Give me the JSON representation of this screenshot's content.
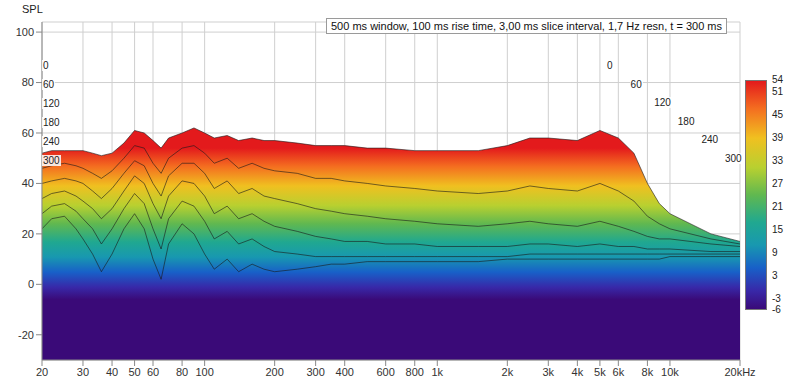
{
  "chart_data": {
    "type": "waterfall",
    "title": "500 ms window, 100 ms rise time, 3,00 ms slice interval, 1,7 Hz resn, t = 300 ms",
    "y_label": "SPL",
    "log": "x",
    "grid": true,
    "xlim": [
      20,
      20000
    ],
    "xticks": [
      20,
      30,
      40,
      50,
      60,
      80,
      100,
      200,
      300,
      400,
      600,
      800,
      {
        "value": 1000,
        "label": "1k"
      },
      {
        "value": 2000,
        "label": "2k"
      },
      {
        "value": 3000,
        "label": "3k"
      },
      {
        "value": 4000,
        "label": "4k"
      },
      {
        "value": 5000,
        "label": "5k"
      },
      {
        "value": 6000,
        "label": "6k"
      },
      {
        "value": 8000,
        "label": "8k"
      },
      {
        "value": 10000,
        "label": "10k"
      },
      {
        "value": 20000,
        "label": "20kHz"
      }
    ],
    "ylim": [
      -30,
      104
    ],
    "yticks": [
      -20,
      0,
      20,
      40,
      60,
      80,
      100
    ],
    "time_ticks": [
      0,
      60,
      120,
      180,
      240,
      300
    ],
    "colorbar": {
      "range": [
        -6,
        54
      ],
      "ticks": [
        54,
        51,
        45,
        39,
        33,
        27,
        21,
        15,
        9,
        3,
        -3,
        -6
      ]
    },
    "x": [
      20,
      22,
      25,
      28,
      30,
      33,
      36,
      40,
      45,
      50,
      55,
      60,
      65,
      70,
      80,
      90,
      100,
      110,
      125,
      140,
      160,
      180,
      200,
      250,
      300,
      350,
      400,
      500,
      600,
      800,
      1000,
      1500,
      2000,
      2500,
      3000,
      4000,
      5000,
      6000,
      7000,
      8000,
      9000,
      10000,
      15000,
      20000
    ],
    "series": [
      {
        "time": 0,
        "values": [
          52,
          53,
          53,
          53,
          53,
          52,
          51,
          52,
          56,
          61,
          60,
          57,
          54,
          58,
          60,
          62,
          60,
          58,
          59,
          57,
          58,
          57,
          57,
          56,
          55,
          55,
          55,
          54,
          54,
          53,
          53,
          53,
          55,
          58,
          58,
          57,
          61,
          58,
          52,
          40,
          32,
          28,
          20,
          17
        ]
      },
      {
        "time": 60,
        "values": [
          46,
          47,
          48,
          47,
          46,
          44,
          42,
          45,
          50,
          55,
          54,
          48,
          44,
          50,
          54,
          55,
          52,
          48,
          50,
          46,
          48,
          46,
          45,
          44,
          42,
          42,
          41,
          40,
          39,
          38,
          37,
          36,
          37,
          39,
          38,
          37,
          40,
          37,
          33,
          27,
          24,
          22,
          18,
          16
        ]
      },
      {
        "time": 120,
        "values": [
          40,
          41,
          42,
          41,
          40,
          37,
          34,
          38,
          44,
          49,
          47,
          40,
          35,
          43,
          48,
          48,
          44,
          38,
          41,
          36,
          38,
          35,
          34,
          32,
          30,
          29,
          28,
          27,
          26,
          25,
          24,
          23,
          24,
          25,
          24,
          23,
          25,
          23,
          21,
          19,
          18,
          18,
          16,
          15
        ]
      },
      {
        "time": 180,
        "values": [
          34,
          36,
          37,
          35,
          33,
          30,
          26,
          30,
          37,
          43,
          40,
          32,
          26,
          35,
          41,
          40,
          35,
          28,
          31,
          26,
          28,
          25,
          23,
          21,
          19,
          18,
          17,
          17,
          16,
          16,
          15,
          15,
          15,
          16,
          16,
          15,
          16,
          15,
          15,
          14,
          14,
          14,
          13,
          13
        ]
      },
      {
        "time": 240,
        "values": [
          28,
          31,
          32,
          29,
          26,
          22,
          16,
          22,
          30,
          36,
          32,
          22,
          14,
          26,
          33,
          31,
          25,
          18,
          21,
          16,
          18,
          15,
          13,
          12,
          11,
          11,
          11,
          11,
          11,
          11,
          11,
          11,
          11,
          12,
          12,
          12,
          12,
          12,
          12,
          12,
          12,
          12,
          12,
          12
        ]
      },
      {
        "time": 300,
        "values": [
          22,
          26,
          27,
          22,
          18,
          12,
          5,
          12,
          22,
          28,
          22,
          10,
          2,
          16,
          24,
          20,
          12,
          6,
          10,
          5,
          8,
          6,
          5,
          6,
          7,
          8,
          8,
          9,
          9,
          9,
          9,
          9,
          10,
          10,
          10,
          10,
          10,
          10,
          10,
          10,
          10,
          11,
          11,
          11
        ]
      }
    ]
  }
}
